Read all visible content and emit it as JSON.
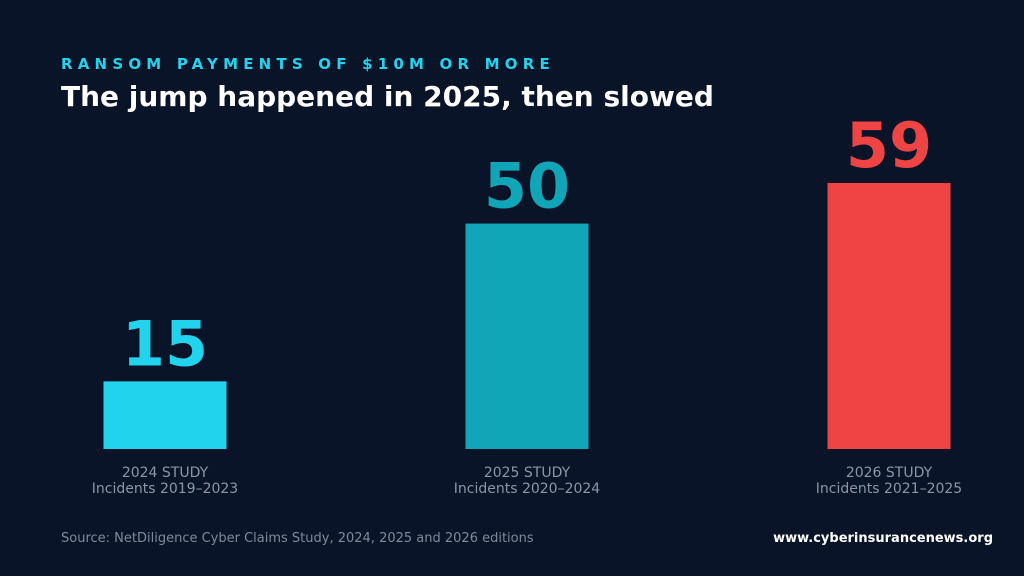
{
  "colors": {
    "background": "#0a1428",
    "kicker": "#22d3ee",
    "title": "#ffffff",
    "category_text": "#8b97a8",
    "source_text": "#7d8a9c",
    "site_text": "#ffffff"
  },
  "header": {
    "kicker": "RANSOM PAYMENTS OF $10M OR MORE",
    "title": "The jump happened in 2025, then slowed"
  },
  "footer": {
    "source": "Source: NetDiligence Cyber Claims Study, 2024, 2025 and 2026 editions",
    "site": "www.cyberinsurancenews.org"
  },
  "chart_data": {
    "type": "bar",
    "categories": [
      "2024 STUDY",
      "2025 STUDY",
      "2026 STUDY"
    ],
    "category_subtitles": [
      "Incidents 2019–2023",
      "Incidents 2020–2024",
      "Incidents 2021–2025"
    ],
    "values": [
      15,
      50,
      59
    ],
    "data_labels": [
      "15",
      "50",
      "59"
    ],
    "bar_colors": [
      "#22d3ee",
      "#10a6b8",
      "#ef4444"
    ],
    "ylim": [
      0,
      59
    ],
    "grid": false,
    "legend": "none"
  }
}
